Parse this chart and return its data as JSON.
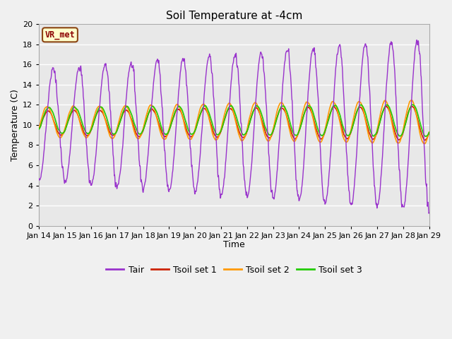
{
  "title": "Soil Temperature at -4cm",
  "xlabel": "Time",
  "ylabel": "Temperature (C)",
  "ylim": [
    0,
    20
  ],
  "annotation": "VR_met",
  "bg_color": "#e8e8e8",
  "fig_color": "#f0f0f0",
  "line_colors": {
    "Tair": "#9933cc",
    "Tsoil_set1": "#cc2200",
    "Tsoil_set2": "#ff9900",
    "Tsoil_set3": "#22cc00"
  },
  "legend_labels": [
    "Tair",
    "Tsoil set 1",
    "Tsoil set 2",
    "Tsoil set 3"
  ],
  "x_tick_labels": [
    "Jan 14",
    "Jan 15",
    "Jan 16",
    "Jan 17",
    "Jan 18",
    "Jan 19",
    "Jan 20",
    "Jan 21",
    "Jan 22",
    "Jan 23",
    "Jan 24",
    "Jan 25",
    "Jan 26",
    "Jan 27",
    "Jan 28",
    "Jan 29"
  ],
  "y_ticks": [
    0,
    2,
    4,
    6,
    8,
    10,
    12,
    14,
    16,
    18,
    20
  ],
  "days": 15,
  "num_points": 1440
}
